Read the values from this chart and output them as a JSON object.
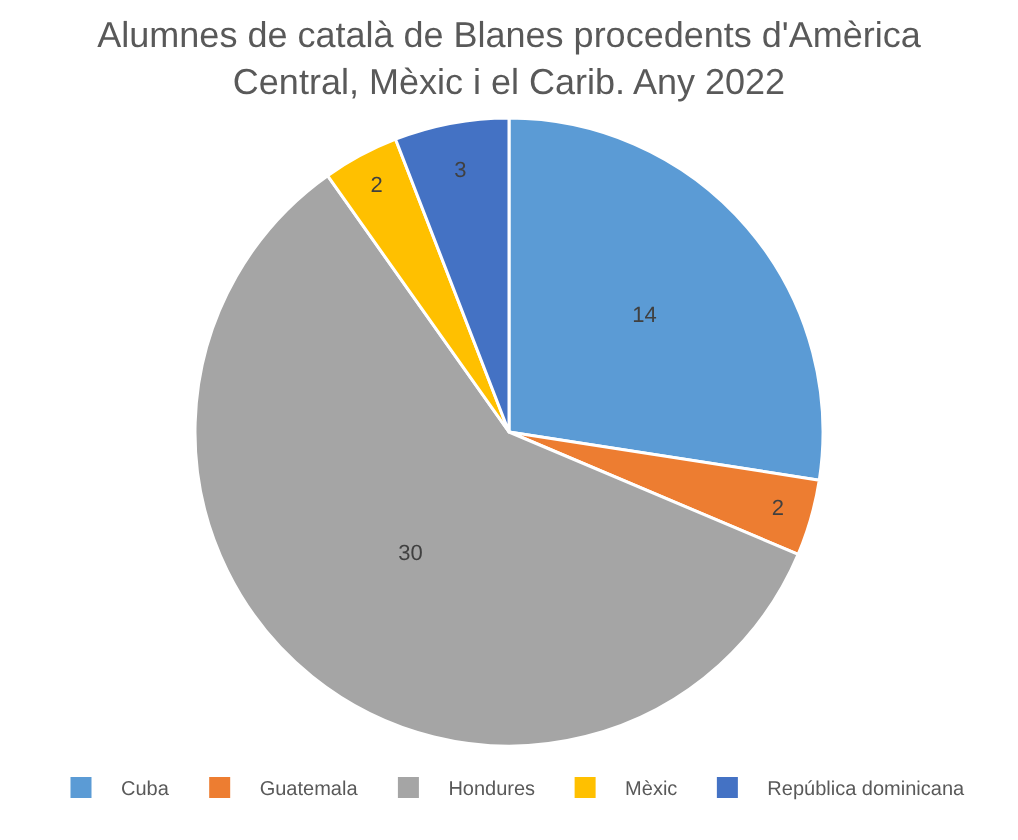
{
  "chart_data": {
    "type": "pie",
    "title": "Alumnes de català de Blanes procedents d'Amèrica Central, Mèxic i el Carib. Any 2022",
    "categories": [
      "Cuba",
      "Guatemala",
      "Hondures",
      "Mèxic",
      "República dominicana"
    ],
    "values": [
      14,
      2,
      30,
      2,
      3
    ],
    "colors": [
      "#5b9bd5",
      "#ed7d31",
      "#a5a5a5",
      "#ffc000",
      "#4472c4"
    ],
    "data_labels": true,
    "legend": "bottom"
  }
}
